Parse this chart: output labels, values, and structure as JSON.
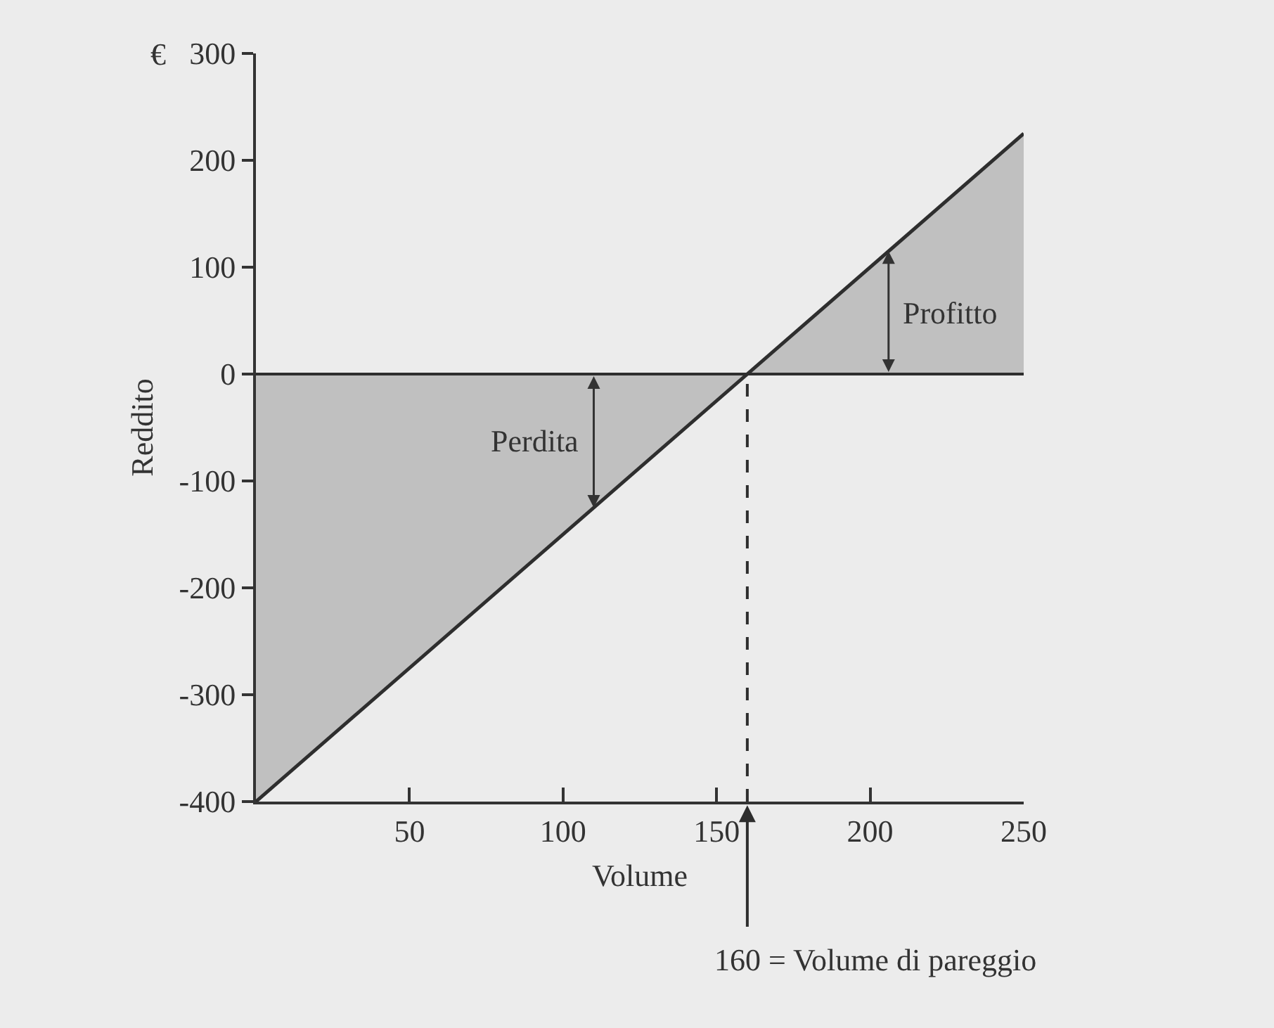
{
  "chart_data": {
    "type": "area",
    "xlabel": "Volume",
    "ylabel": "Reddito",
    "x": [
      0,
      250
    ],
    "series": [
      {
        "color": "#2e2e2e",
        "values": [
          -400,
          225
        ]
      }
    ],
    "xlim": [
      0,
      250
    ],
    "xticks": [
      50,
      100,
      150,
      200,
      250
    ],
    "ylim": [
      -400,
      300
    ],
    "yticks": [
      -400,
      -300,
      -200,
      -100,
      0,
      100,
      200,
      300
    ],
    "ref_lines": [
      {
        "axis": "y",
        "value": 0,
        "color": "#2e2e2e",
        "line_style": "solid"
      },
      {
        "axis": "x",
        "value": 160,
        "label": "160 = Volume di pareggio",
        "color": "#2e2e2e",
        "line_style": "dashed"
      }
    ],
    "annotations": [
      "€",
      {
        "text": "Perdita",
        "x": 110,
        "y": -125
      },
      {
        "text": "Profitto",
        "x": 206,
        "y": 115
      }
    ]
  }
}
